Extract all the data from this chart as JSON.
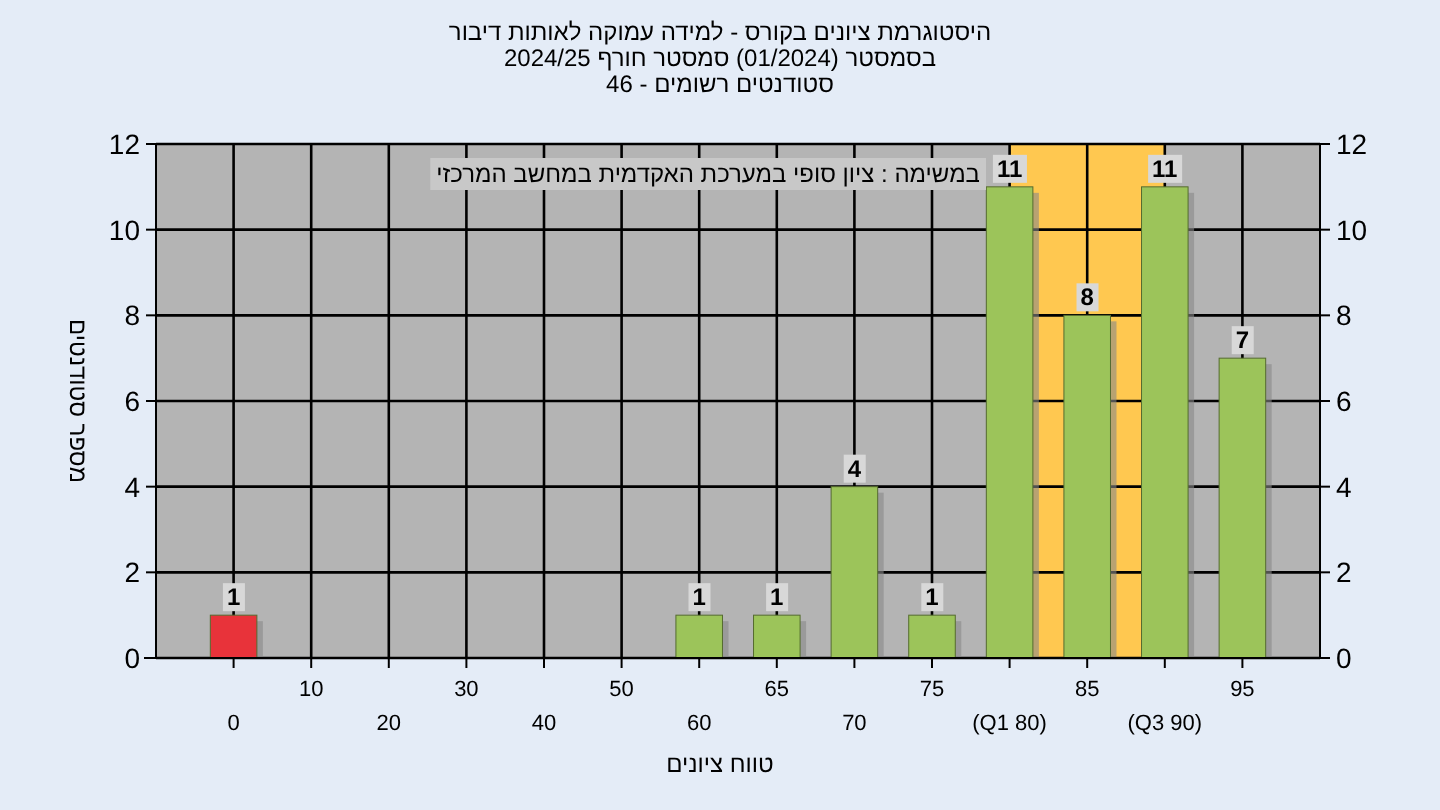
{
  "chart_data": {
    "type": "bar",
    "title": "היסטוגרמת ציונים בקורס - למידה עמוקה לאותות דיבור",
    "subtitle": [
      "בסמסטר  (01/2024)  סמסטר חורף 2024/25",
      "סטודנטים רשומים - 46"
    ],
    "xlabel": "טווח ציונים",
    "ylabel": "מספר סטודנטים",
    "annotations": [
      "במשימה : ציון סופי במערכת האקדמית במחשב המרכזי"
    ],
    "categories": [
      "0",
      "10",
      "20",
      "30",
      "40",
      "50",
      "60",
      "65",
      "70",
      "75",
      "(Q1 80)",
      "85",
      "(Q3 90)",
      "95"
    ],
    "values": [
      1,
      0,
      0,
      0,
      0,
      0,
      1,
      1,
      4,
      1,
      11,
      8,
      11,
      7
    ],
    "colors": [
      "#e8333a",
      "#9cc45a",
      "#9cc45a",
      "#9cc45a",
      "#9cc45a",
      "#9cc45a",
      "#9cc45a",
      "#9cc45a",
      "#9cc45a",
      "#9cc45a",
      "#9cc45a",
      "#9cc45a",
      "#9cc45a",
      "#9cc45a"
    ],
    "value_labels": [
      "1",
      null,
      null,
      null,
      null,
      null,
      "1",
      "1",
      "4",
      "1",
      "11",
      "8",
      "11",
      "7"
    ],
    "ylim": [
      0,
      12
    ],
    "yticks": [
      0,
      2,
      4,
      6,
      8,
      10,
      12
    ],
    "y2lim": [
      0,
      12
    ],
    "y2ticks": [
      0,
      2,
      4,
      6,
      8,
      10,
      12
    ],
    "bands": [
      {
        "axis": "x",
        "from": "(Q1 80)",
        "to": "(Q3 90)",
        "color": "#ffc850"
      }
    ],
    "grid": true
  }
}
